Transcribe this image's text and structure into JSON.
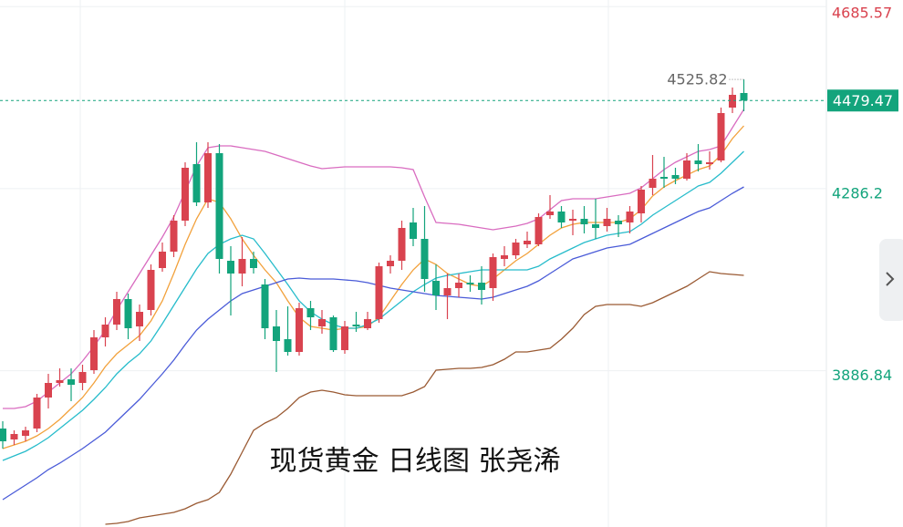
{
  "chart_data": {
    "type": "candlestick",
    "title": "现货黄金 日线图 张尧浠",
    "up_color": "#d9434f",
    "down_color": "#13a47c",
    "ylim": [
      3544,
      4700
    ],
    "yticks": [
      4685.57,
      4286.2,
      3886.84
    ],
    "grid": true,
    "open": [
      3760,
      3736,
      3744,
      3760,
      3828,
      3860,
      3868,
      3860,
      3888,
      3960,
      3988,
      4044,
      3984,
      4020,
      4112,
      4148,
      4216,
      4340,
      4256,
      4364,
      4128,
      4100,
      4132,
      4076,
      3984,
      3956,
      3928,
      4024,
      3984,
      4004,
      3932,
      3988,
      3980,
      4000,
      4116,
      4128,
      4212,
      4176,
      4084,
      4052,
      4068,
      4080,
      4080,
      4068,
      4132,
      4140,
      4164,
      4164,
      4228,
      4236,
      4216,
      4220,
      4208,
      4204,
      4216,
      4212,
      4232,
      4288,
      4312,
      4316,
      4308,
      4348,
      4340,
      4348,
      4464,
      4496
    ],
    "high": [
      3776,
      3756,
      3764,
      3836,
      3880,
      3892,
      3892,
      3900,
      3976,
      4004,
      4060,
      4056,
      4032,
      4120,
      4168,
      4228,
      4344,
      4388,
      4388,
      4384,
      4160,
      4180,
      4148,
      4088,
      4020,
      4028,
      4036,
      4040,
      4020,
      4008,
      3996,
      4016,
      4016,
      4124,
      4140,
      4216,
      4244,
      4248,
      4120,
      4100,
      4100,
      4096,
      4116,
      4144,
      4160,
      4176,
      4192,
      4232,
      4272,
      4248,
      4240,
      4248,
      4264,
      4244,
      4228,
      4248,
      4292,
      4360,
      4356,
      4332,
      4364,
      4384,
      4368,
      4464,
      4508,
      4525.82
    ],
    "low": [
      3716,
      3724,
      3732,
      3752,
      3804,
      3852,
      3820,
      3844,
      3880,
      3940,
      3976,
      3956,
      3952,
      4008,
      4104,
      4136,
      4204,
      4248,
      4244,
      4100,
      4008,
      4072,
      4100,
      3956,
      3884,
      3920,
      3920,
      3976,
      3968,
      3928,
      3924,
      3972,
      3976,
      3992,
      4100,
      4108,
      4160,
      4060,
      4020,
      4000,
      4048,
      4060,
      4032,
      4040,
      4116,
      4132,
      4156,
      4160,
      4220,
      4200,
      4184,
      4188,
      4176,
      4192,
      4180,
      4188,
      4212,
      4272,
      4288,
      4296,
      4304,
      4324,
      4328,
      4344,
      4452,
      4456
    ],
    "close": [
      3732,
      3748,
      3756,
      3828,
      3860,
      3866,
      3856,
      3884,
      3960,
      3988,
      4044,
      3980,
      4016,
      4108,
      4148,
      4216,
      4332,
      4256,
      4364,
      4132,
      4100,
      4132,
      4112,
      3980,
      3952,
      3928,
      4024,
      4004,
      4000,
      3932,
      3984,
      3984,
      4000,
      4116,
      4128,
      4200,
      4176,
      4088,
      4052,
      4068,
      4080,
      4076,
      4064,
      4136,
      4140,
      4168,
      4172,
      4224,
      4236,
      4212,
      4220,
      4208,
      4200,
      4220,
      4208,
      4236,
      4284,
      4308,
      4308,
      4308,
      4348,
      4340,
      4344,
      4452,
      4492,
      4479.47
    ],
    "overlays": [
      {
        "color": "#d96cc0",
        "values": [
          3804,
          3804,
          3808,
          3820,
          3840,
          3860,
          3880,
          3908,
          3940,
          3976,
          4020,
          4060,
          4100,
          4140,
          4180,
          4224,
          4280,
          4336,
          4376,
          4380,
          4380,
          4376,
          4372,
          4368,
          4360,
          4352,
          4344,
          4336,
          4330,
          4332,
          4334,
          4334,
          4334,
          4334,
          4334,
          4332,
          4328,
          4268,
          4212,
          4210,
          4208,
          4204,
          4200,
          4196,
          4200,
          4204,
          4210,
          4220,
          4240,
          4260,
          4264,
          4264,
          4264,
          4268,
          4272,
          4276,
          4288,
          4308,
          4328,
          4344,
          4356,
          4368,
          4372,
          4380,
          4420,
          4460
        ]
      },
      {
        "color": "#f2a13b",
        "values": [
          3716,
          3724,
          3732,
          3744,
          3760,
          3780,
          3804,
          3828,
          3860,
          3896,
          3924,
          3944,
          3964,
          3996,
          4040,
          4100,
          4164,
          4220,
          4264,
          4256,
          4220,
          4176,
          4140,
          4108,
          4080,
          4040,
          4004,
          3984,
          3980,
          3976,
          3980,
          3980,
          3984,
          4004,
          4040,
          4076,
          4108,
          4132,
          4120,
          4100,
          4088,
          4076,
          4072,
          4088,
          4108,
          4128,
          4144,
          4164,
          4184,
          4200,
          4208,
          4212,
          4212,
          4212,
          4212,
          4220,
          4240,
          4270,
          4290,
          4304,
          4316,
          4328,
          4336,
          4360,
          4396,
          4424
        ]
      },
      {
        "color": "#27bccb",
        "values": [
          3690,
          3700,
          3710,
          3724,
          3740,
          3760,
          3780,
          3800,
          3824,
          3850,
          3880,
          3904,
          3924,
          3952,
          3990,
          4030,
          4070,
          4110,
          4144,
          4164,
          4176,
          4184,
          4176,
          4144,
          4110,
          4076,
          4040,
          4016,
          4000,
          3988,
          3980,
          3980,
          3988,
          4000,
          4020,
          4040,
          4060,
          4076,
          4090,
          4096,
          4100,
          4104,
          4108,
          4108,
          4108,
          4108,
          4108,
          4116,
          4132,
          4144,
          4156,
          4168,
          4176,
          4184,
          4188,
          4192,
          4208,
          4228,
          4244,
          4260,
          4276,
          4292,
          4300,
          4320,
          4344,
          4368
        ]
      },
      {
        "color": "#4a5bd8",
        "values": [
          3604,
          3620,
          3636,
          3652,
          3670,
          3684,
          3700,
          3716,
          3734,
          3752,
          3776,
          3800,
          3824,
          3852,
          3880,
          3910,
          3944,
          3976,
          4000,
          4020,
          4040,
          4056,
          4064,
          4072,
          4080,
          4088,
          4090,
          4088,
          4088,
          4088,
          4086,
          4084,
          4080,
          4074,
          4068,
          4064,
          4060,
          4056,
          4052,
          4050,
          4048,
          4046,
          4044,
          4048,
          4056,
          4064,
          4072,
          4084,
          4100,
          4116,
          4132,
          4140,
          4148,
          4156,
          4160,
          4164,
          4176,
          4188,
          4200,
          4212,
          4224,
          4236,
          4244,
          4260,
          4276,
          4290
        ]
      },
      {
        "color": "#9a5a33",
        "values": [
          null,
          null,
          null,
          null,
          null,
          null,
          null,
          null,
          null,
          3550,
          3552,
          3556,
          3564,
          3568,
          3572,
          3576,
          3584,
          3596,
          3604,
          3620,
          3660,
          3708,
          3756,
          3772,
          3784,
          3804,
          3828,
          3840,
          3844,
          3840,
          3834,
          3832,
          3832,
          3832,
          3832,
          3832,
          3840,
          3852,
          3888,
          3890,
          3892,
          3892,
          3894,
          3900,
          3912,
          3928,
          3928,
          3932,
          3936,
          3956,
          3980,
          4010,
          4028,
          4032,
          4032,
          4032,
          4028,
          4036,
          4048,
          4060,
          4072,
          4088,
          4104,
          4100,
          4098,
          4096
        ]
      }
    ]
  }
}
